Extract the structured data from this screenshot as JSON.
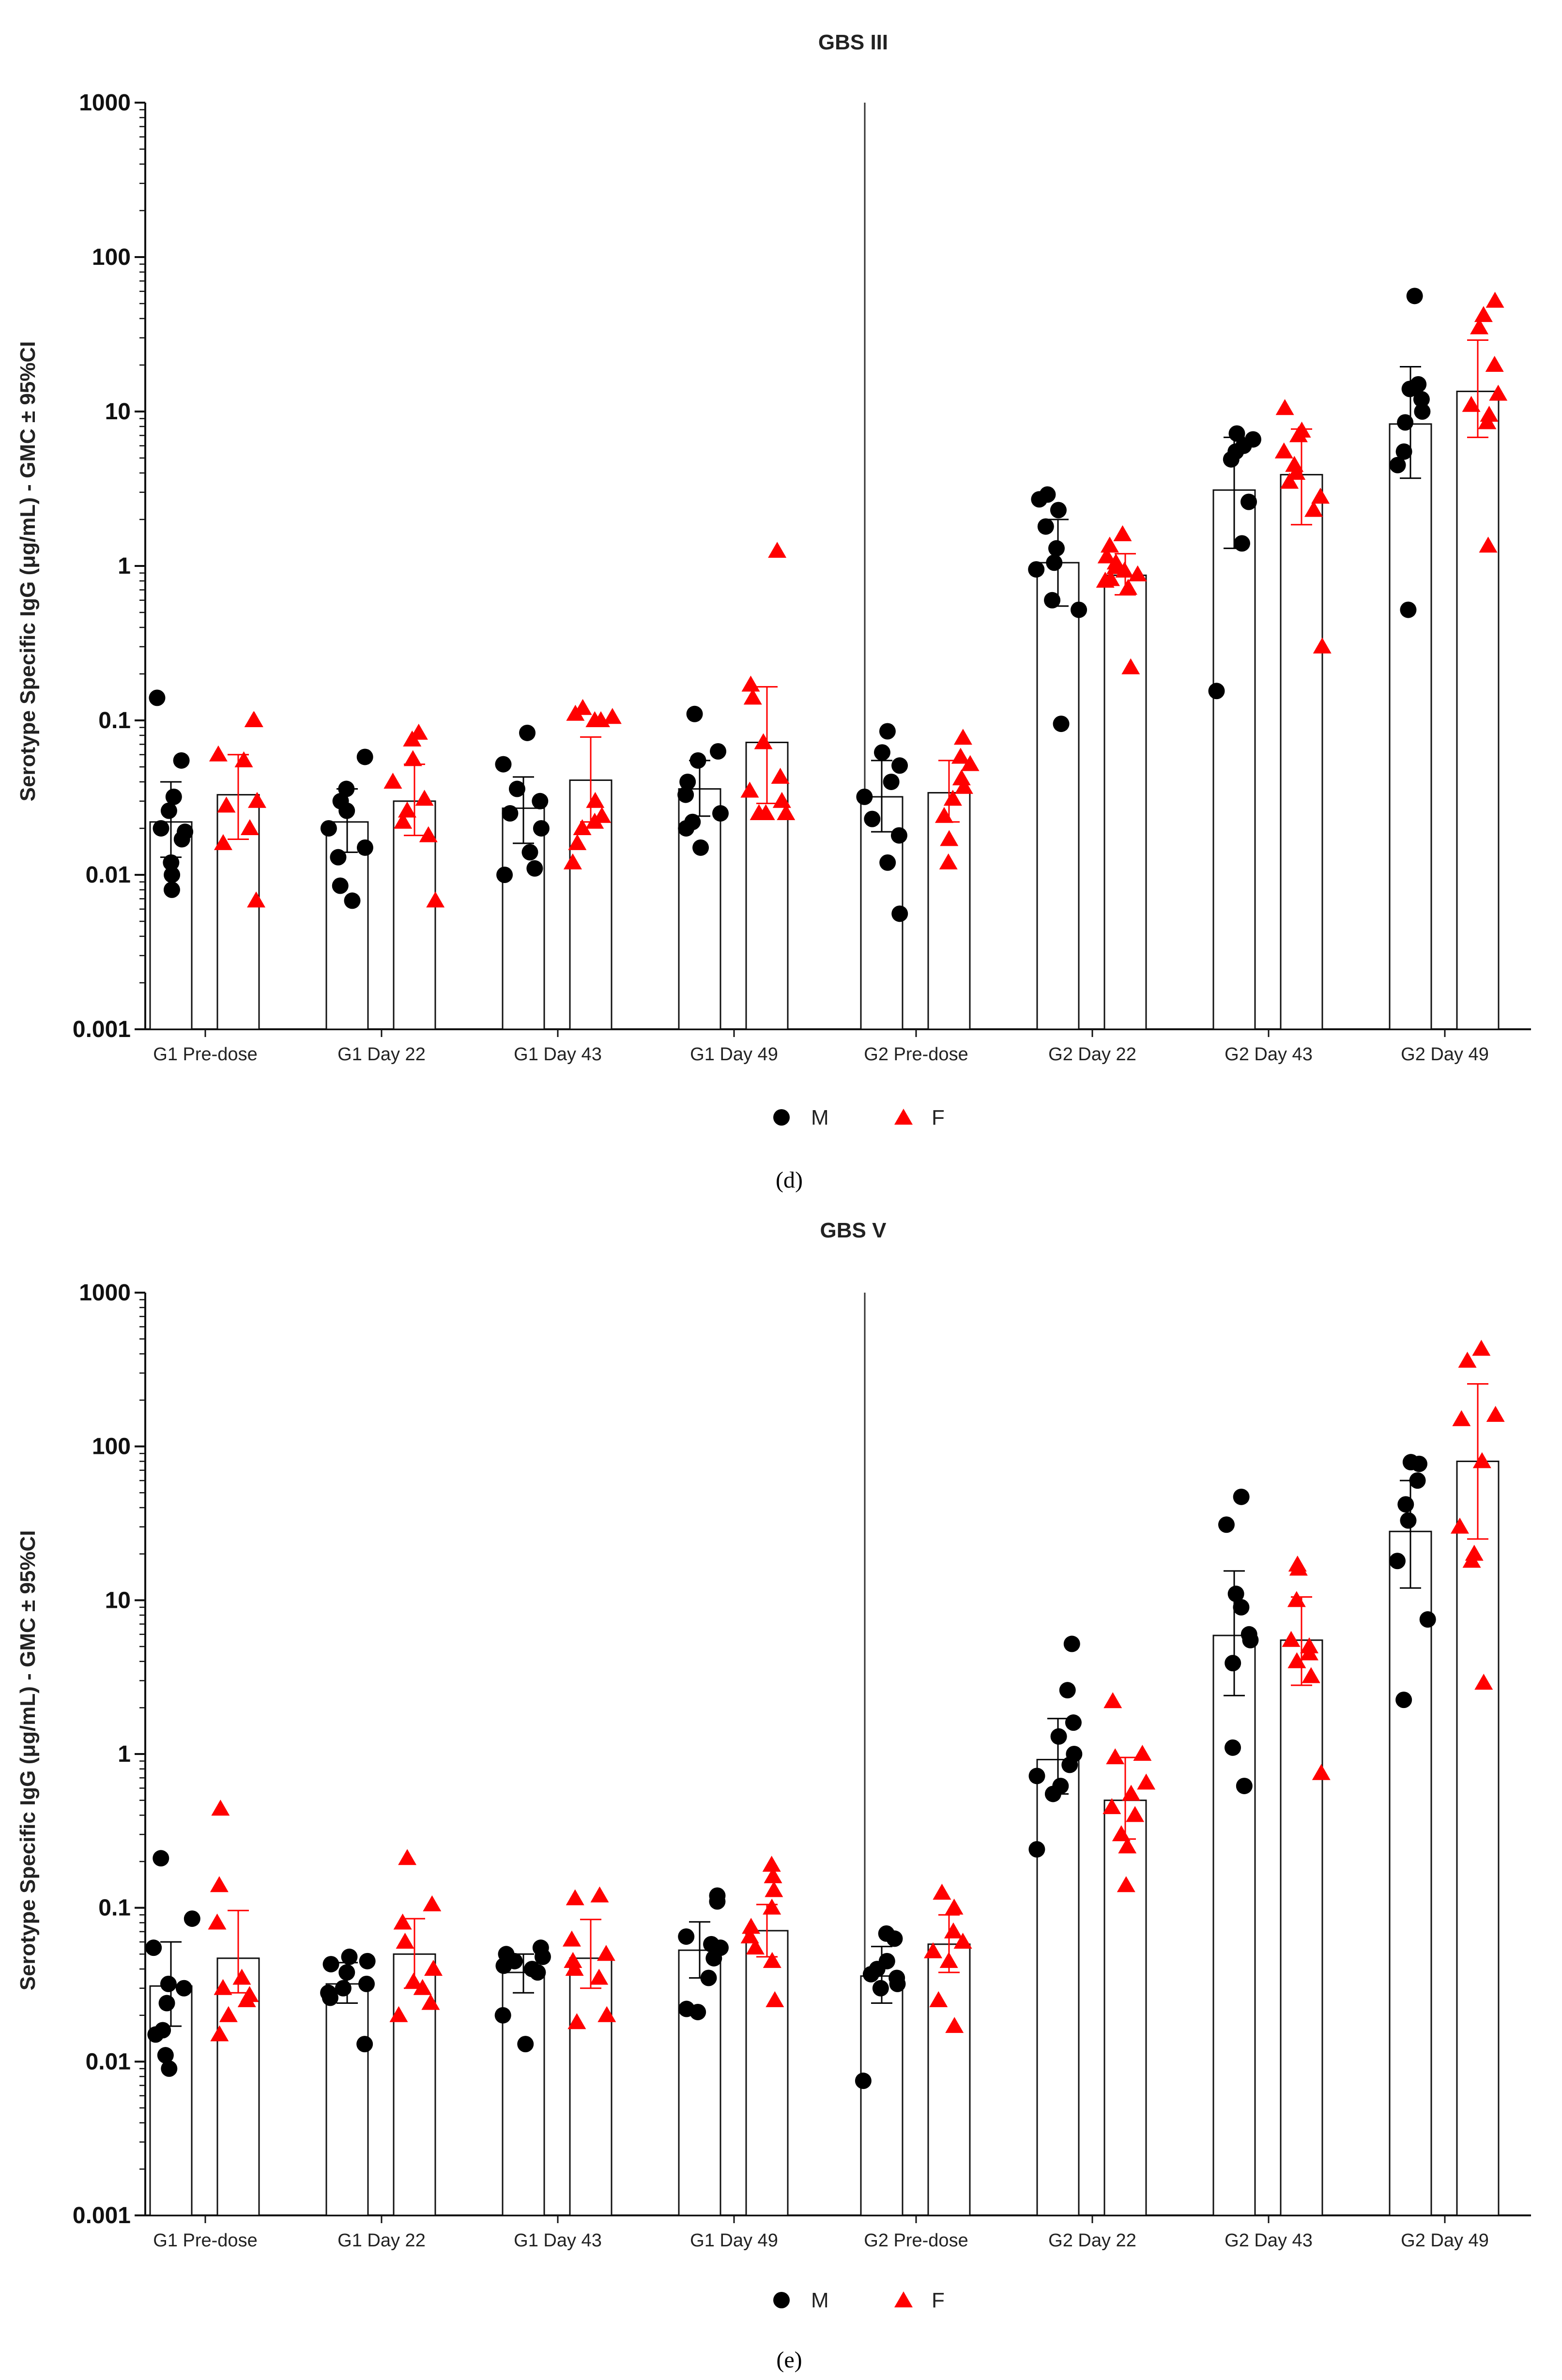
{
  "colors": {
    "M": "#000000",
    "F": "#ff0000",
    "bar_fill": "#ffffff",
    "axis": "#111111"
  },
  "legend": [
    {
      "key": "M",
      "label": "M",
      "marker": "circle"
    },
    {
      "key": "F",
      "label": "F",
      "marker": "triangle"
    }
  ],
  "chart_data": [
    {
      "type": "bar",
      "panel": "(d)",
      "title": "GBS III",
      "ylabel": "Serotype Specific IgG (μg/mL) - GMC ± 95%CI",
      "yscale": "log",
      "ylim": [
        0.001,
        1000
      ],
      "ytick_labels": [
        "0.001",
        "0.01",
        "0.1",
        "1",
        "10",
        "100",
        "1000"
      ],
      "categories": [
        "G1 Pre-dose",
        "G1 Day 22",
        "G1 Day 43",
        "G1 Day 49",
        "G2 Pre-dose",
        "G2 Day 22",
        "G2 Day 43",
        "G2 Day 49"
      ],
      "series": [
        {
          "name": "M",
          "values": [
            0.022,
            0.022,
            0.027,
            0.036,
            0.032,
            1.05,
            3.1,
            8.3
          ],
          "ci_low": [
            0.013,
            0.014,
            0.016,
            0.024,
            0.019,
            0.55,
            1.3,
            3.7
          ],
          "ci_high": [
            0.04,
            0.036,
            0.043,
            0.055,
            0.055,
            2.0,
            6.8,
            19.5
          ],
          "points": [
            [
              0.14,
              0.055,
              0.032,
              0.026,
              0.02,
              0.019,
              0.017,
              0.012,
              0.01,
              0.008
            ],
            [
              0.058,
              0.036,
              0.03,
              0.026,
              0.02,
              0.015,
              0.013,
              0.0085,
              0.0068
            ],
            [
              0.083,
              0.052,
              0.036,
              0.03,
              0.025,
              0.02,
              0.014,
              0.011,
              0.01
            ],
            [
              0.11,
              0.063,
              0.055,
              0.04,
              0.033,
              0.025,
              0.022,
              0.02,
              0.015
            ],
            [
              0.085,
              0.062,
              0.051,
              0.04,
              0.032,
              0.023,
              0.018,
              0.012,
              0.0056
            ],
            [
              2.9,
              2.7,
              2.3,
              1.8,
              1.3,
              1.05,
              0.95,
              0.6,
              0.52,
              0.095
            ],
            [
              7.2,
              6.6,
              6.0,
              5.5,
              4.9,
              2.6,
              1.4,
              0.155
            ],
            [
              56,
              15,
              14,
              12,
              10,
              8.5,
              5.5,
              4.5,
              0.52
            ]
          ]
        },
        {
          "name": "F",
          "values": [
            0.033,
            0.03,
            0.041,
            0.072,
            0.034,
            0.87,
            3.9,
            13.5
          ],
          "ci_low": [
            0.017,
            0.018,
            0.022,
            0.029,
            0.022,
            0.65,
            1.85,
            6.8
          ],
          "ci_high": [
            0.06,
            0.052,
            0.078,
            0.165,
            0.055,
            1.2,
            7.7,
            29
          ],
          "points": [
            [
              0.1,
              0.1,
              0.06,
              0.055,
              0.03,
              0.028,
              0.02,
              0.016,
              0.0068
            ],
            [
              0.083,
              0.075,
              0.056,
              0.04,
              0.031,
              0.026,
              0.022,
              0.018,
              0.0068
            ],
            [
              0.12,
              0.11,
              0.105,
              0.1,
              0.1,
              0.03,
              0.024,
              0.022,
              0.02,
              0.016,
              0.012
            ],
            [
              1.25,
              0.17,
              0.14,
              0.072,
              0.043,
              0.035,
              0.03,
              0.025,
              0.025,
              0.025
            ],
            [
              0.077,
              0.058,
              0.052,
              0.042,
              0.037,
              0.031,
              0.024,
              0.017,
              0.012
            ],
            [
              1.6,
              1.35,
              1.15,
              1.05,
              0.98,
              0.93,
              0.88,
              0.82,
              0.8,
              0.72,
              0.22
            ],
            [
              10.5,
              7.5,
              7.0,
              5.5,
              4.5,
              4.0,
              3.5,
              2.8,
              2.3,
              0.3
            ],
            [
              52,
              42,
              35,
              20,
              13,
              11,
              9.5,
              8.5,
              1.35
            ]
          ]
        }
      ]
    },
    {
      "type": "bar",
      "panel": "(e)",
      "title": "GBS V",
      "ylabel": "Serotype Specific IgG (μg/mL) - GMC ± 95%CI",
      "yscale": "log",
      "ylim": [
        0.001,
        1000
      ],
      "ytick_labels": [
        "0.001",
        "0.01",
        "0.1",
        "1",
        "10",
        "100",
        "1000"
      ],
      "categories": [
        "G1 Pre-dose",
        "G1 Day 22",
        "G1 Day 43",
        "G1 Day 49",
        "G2 Pre-dose",
        "G2 Day 22",
        "G2 Day 43",
        "G2 Day 49"
      ],
      "series": [
        {
          "name": "M",
          "values": [
            0.031,
            0.032,
            0.038,
            0.053,
            0.036,
            0.92,
            5.9,
            28
          ],
          "ci_low": [
            0.017,
            0.024,
            0.028,
            0.035,
            0.024,
            0.55,
            2.4,
            12
          ],
          "ci_high": [
            0.06,
            0.044,
            0.05,
            0.081,
            0.056,
            1.7,
            15.5,
            60
          ],
          "points": [
            [
              0.21,
              0.085,
              0.055,
              0.032,
              0.03,
              0.024,
              0.016,
              0.015,
              0.011,
              0.009
            ],
            [
              0.048,
              0.045,
              0.043,
              0.038,
              0.032,
              0.03,
              0.028,
              0.026,
              0.013
            ],
            [
              0.055,
              0.05,
              0.048,
              0.045,
              0.042,
              0.04,
              0.038,
              0.02,
              0.013
            ],
            [
              0.12,
              0.11,
              0.065,
              0.058,
              0.055,
              0.047,
              0.035,
              0.022,
              0.021
            ],
            [
              0.068,
              0.063,
              0.045,
              0.04,
              0.037,
              0.035,
              0.032,
              0.03,
              0.0075
            ],
            [
              5.2,
              2.6,
              1.6,
              1.3,
              1.0,
              0.85,
              0.72,
              0.62,
              0.55,
              0.24
            ],
            [
              47,
              31,
              11,
              9.0,
              6.0,
              5.5,
              3.9,
              1.1,
              0.62
            ],
            [
              79,
              77,
              60,
              42,
              33,
              18,
              7.5,
              2.25
            ]
          ]
        },
        {
          "name": "F",
          "values": [
            0.047,
            0.05,
            0.047,
            0.071,
            0.058,
            0.5,
            5.5,
            80
          ],
          "ci_low": [
            0.028,
            0.03,
            0.03,
            0.048,
            0.038,
            0.28,
            2.8,
            25
          ],
          "ci_high": [
            0.096,
            0.085,
            0.084,
            0.105,
            0.09,
            0.95,
            10.5,
            255
          ],
          "points": [
            [
              0.44,
              0.14,
              0.08,
              0.035,
              0.03,
              0.027,
              0.025,
              0.02,
              0.015
            ],
            [
              0.21,
              0.105,
              0.08,
              0.06,
              0.04,
              0.033,
              0.03,
              0.024,
              0.02
            ],
            [
              0.12,
              0.115,
              0.062,
              0.05,
              0.045,
              0.04,
              0.035,
              0.02,
              0.018
            ],
            [
              0.19,
              0.16,
              0.13,
              0.1,
              0.075,
              0.065,
              0.055,
              0.045,
              0.025
            ],
            [
              0.125,
              0.1,
              0.07,
              0.06,
              0.052,
              0.045,
              0.025,
              0.017
            ],
            [
              2.2,
              1.0,
              0.95,
              0.65,
              0.55,
              0.45,
              0.4,
              0.3,
              0.25,
              0.14
            ],
            [
              17,
              16,
              10,
              5.5,
              5.0,
              4.5,
              4.0,
              3.2,
              0.75
            ],
            [
              430,
              360,
              160,
              150,
              80,
              30,
              20,
              18,
              2.9
            ]
          ]
        }
      ]
    }
  ]
}
